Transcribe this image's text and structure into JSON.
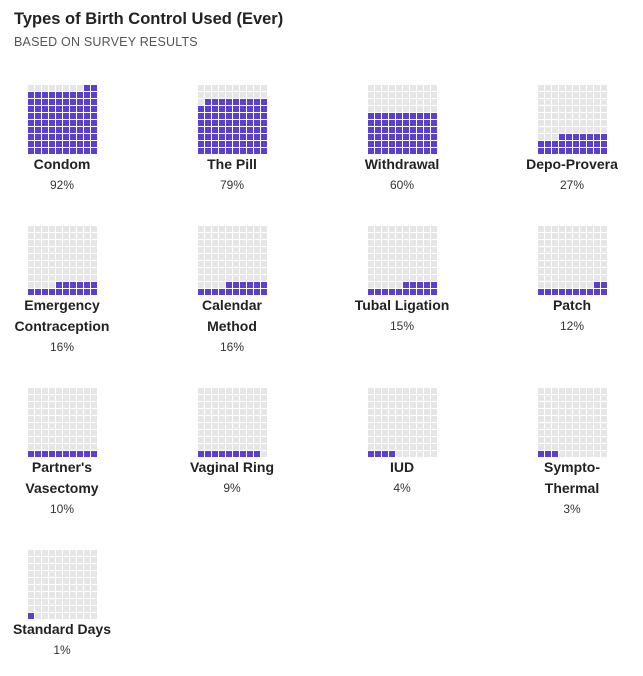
{
  "title": "Types of Birth Control Used (Ever)",
  "subtitle": "BASED ON SURVEY RESULTS",
  "colors": {
    "filled": "#5b3fcf",
    "empty": "#e6e6e6",
    "text": "#222222"
  },
  "chart_data": {
    "type": "waffle",
    "unit": "%",
    "grid": "10x10",
    "categories": [
      {
        "label_lines": [
          "Condom"
        ],
        "value": 92,
        "value_text": "92%"
      },
      {
        "label_lines": [
          "The Pill"
        ],
        "value": 79,
        "value_text": "79%"
      },
      {
        "label_lines": [
          "Withdrawal"
        ],
        "value": 60,
        "value_text": "60%"
      },
      {
        "label_lines": [
          "Depo-Provera"
        ],
        "value": 27,
        "value_text": "27%"
      },
      {
        "label_lines": [
          "Emergency",
          "Contraception"
        ],
        "value": 16,
        "value_text": "16%"
      },
      {
        "label_lines": [
          "Calendar",
          "Method"
        ],
        "value": 16,
        "value_text": "16%"
      },
      {
        "label_lines": [
          "Tubal Ligation"
        ],
        "value": 15,
        "value_text": "15%"
      },
      {
        "label_lines": [
          "Patch"
        ],
        "value": 12,
        "value_text": "12%"
      },
      {
        "label_lines": [
          "Partner's",
          "Vasectomy"
        ],
        "value": 10,
        "value_text": "10%"
      },
      {
        "label_lines": [
          "Vaginal Ring"
        ],
        "value": 9,
        "value_text": "9%"
      },
      {
        "label_lines": [
          "IUD"
        ],
        "value": 4,
        "value_text": "4%"
      },
      {
        "label_lines": [
          "Sympto-",
          "Thermal"
        ],
        "value": 3,
        "value_text": "3%"
      },
      {
        "label_lines": [
          "Standard Days"
        ],
        "value": 1,
        "value_text": "1%"
      }
    ]
  }
}
